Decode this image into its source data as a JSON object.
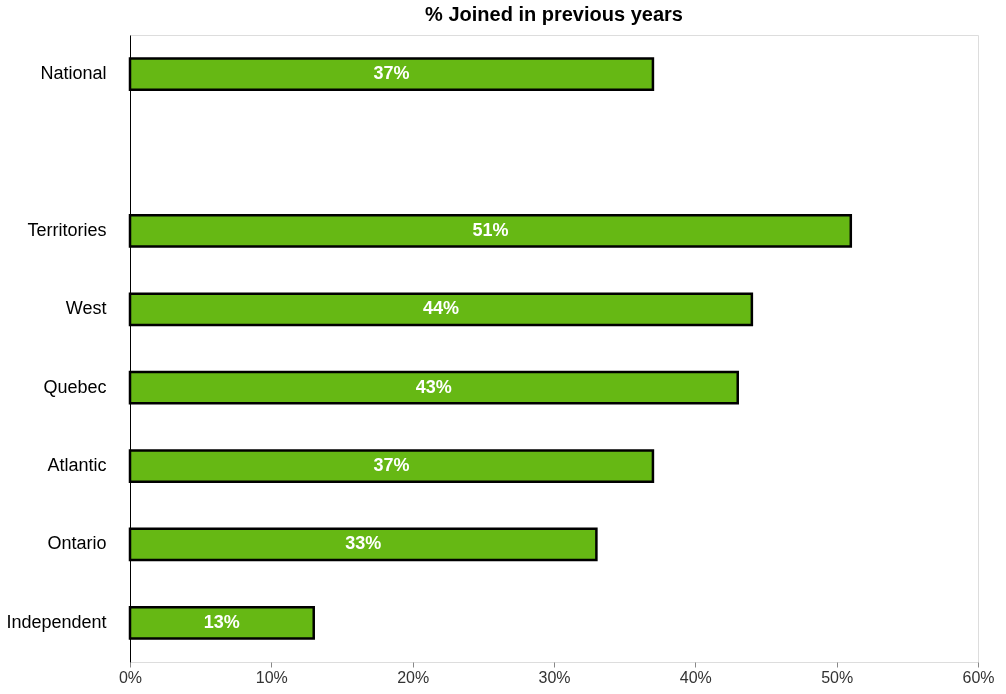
{
  "chart_data": {
    "type": "bar",
    "orientation": "horizontal",
    "title": "% Joined in previous years",
    "categories": [
      "National",
      null,
      "Territories",
      "West",
      "Quebec",
      "Atlantic",
      "Ontario",
      "Independent"
    ],
    "values": [
      37,
      null,
      51,
      44,
      43,
      37,
      33,
      13
    ],
    "color": "#66b814",
    "value_labels": [
      "37%",
      null,
      "51%",
      "44%",
      "43%",
      "37%",
      "33%",
      "13%"
    ],
    "xlim": [
      0,
      60
    ],
    "xticks": [
      {
        "value": 0,
        "label": "0%"
      },
      {
        "value": 10,
        "label": "10%"
      },
      {
        "value": 20,
        "label": "20%"
      },
      {
        "value": 30,
        "label": "30%"
      },
      {
        "value": 40,
        "label": "40%"
      },
      {
        "value": 50,
        "label": "50%"
      },
      {
        "value": 60,
        "label": "60%"
      }
    ],
    "grid": false
  }
}
